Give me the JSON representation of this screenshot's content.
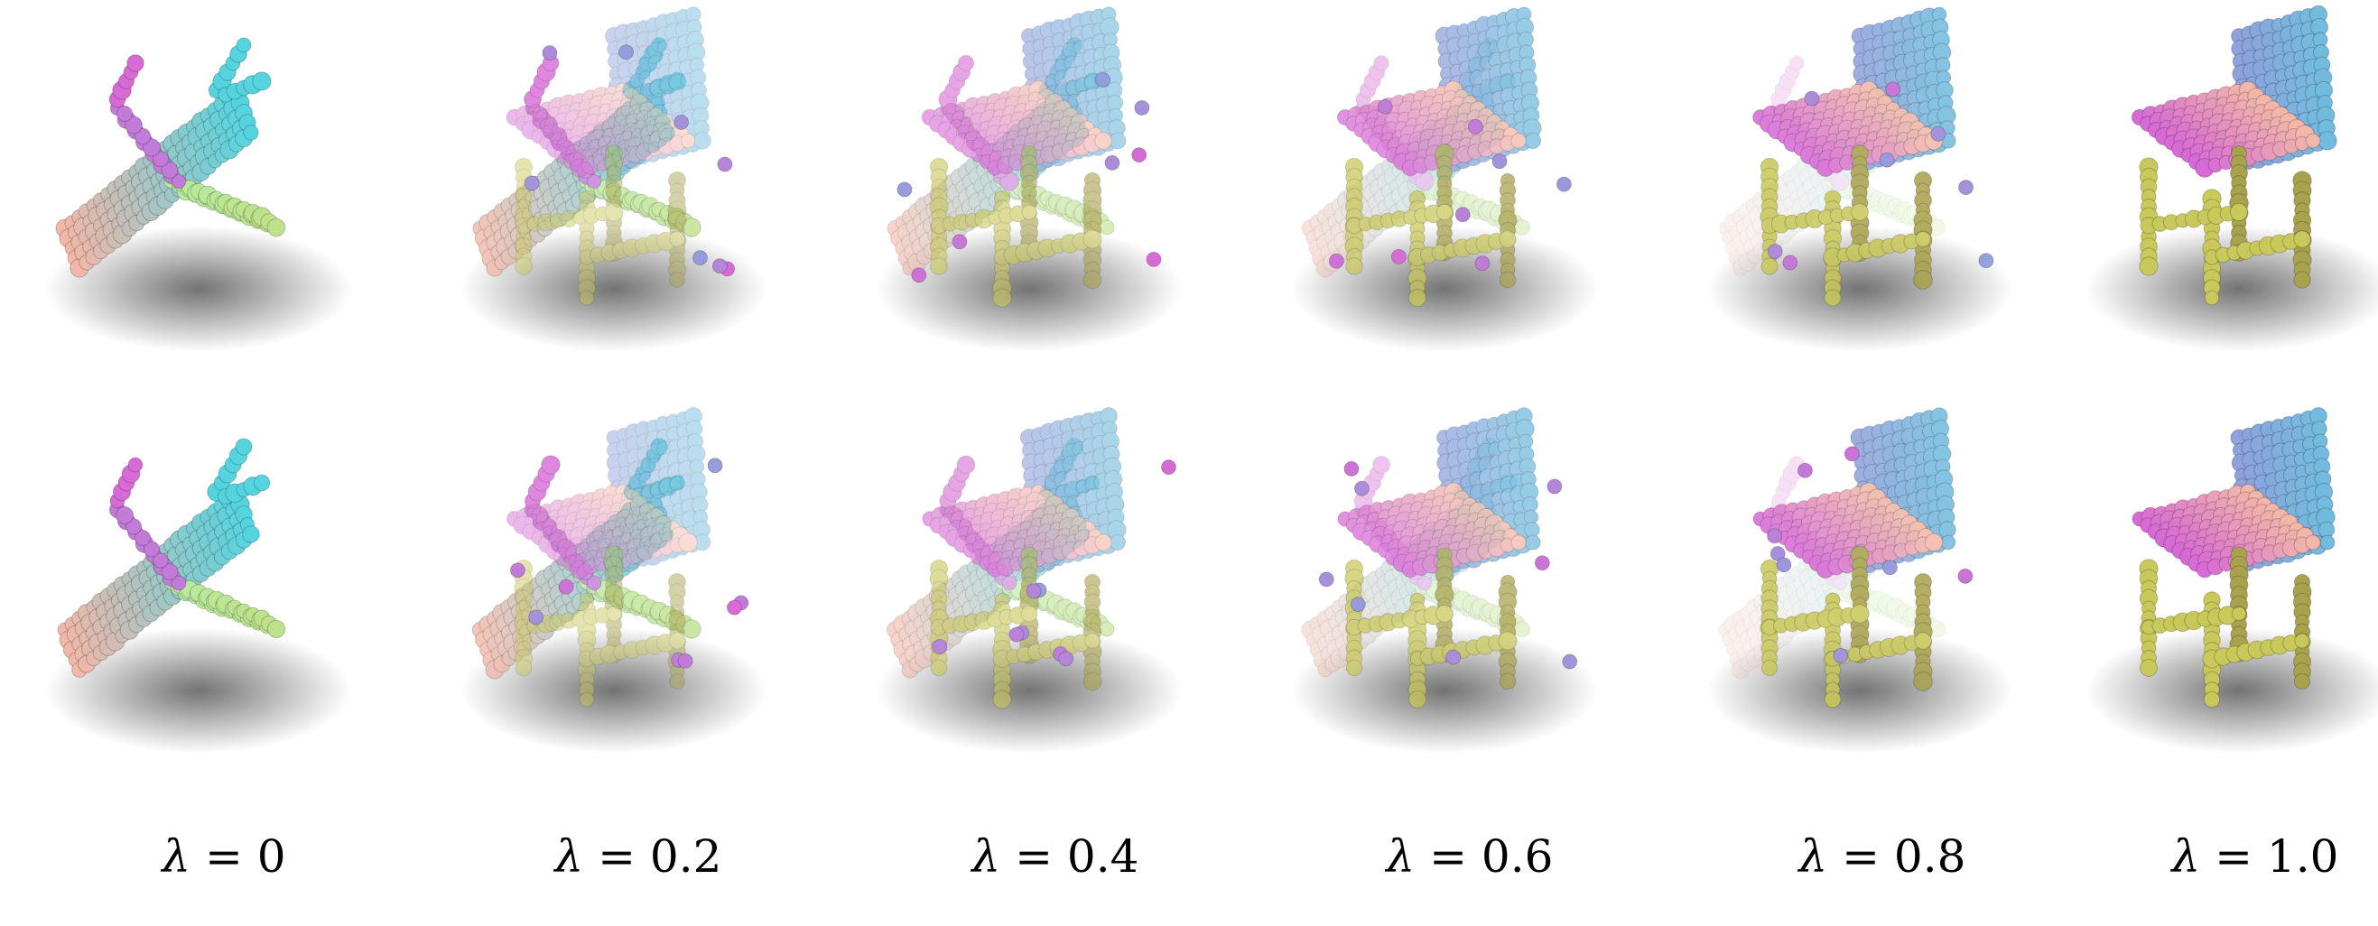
{
  "figure": {
    "rows": [
      {
        "name": "row-1",
        "shapes": [
          "airplane",
          "airplane-chair-mix",
          "airplane-chair-mix",
          "chair-airplane-mix",
          "chair-airplane-mix",
          "chair"
        ]
      },
      {
        "name": "row-2",
        "shapes": [
          "airplane",
          "airplane-chair-mix",
          "airplane-chair-mix",
          "chair-airplane-mix",
          "chair-airplane-mix",
          "chair"
        ]
      }
    ],
    "lambda_values": [
      0,
      0.2,
      0.4,
      0.6,
      0.8,
      1.0
    ],
    "captions": [
      {
        "symbol": "λ",
        "eq": " = ",
        "value": "0"
      },
      {
        "symbol": "λ",
        "eq": " = ",
        "value": "0.2"
      },
      {
        "symbol": "λ",
        "eq": " = ",
        "value": "0.4"
      },
      {
        "symbol": "λ",
        "eq": " = ",
        "value": "0.6"
      },
      {
        "symbol": "λ",
        "eq": " = ",
        "value": "0.8"
      },
      {
        "symbol": "λ",
        "eq": " = ",
        "value": "1.0"
      }
    ],
    "colors": {
      "nose": "#f2b7a8",
      "tail": "#d86ad6",
      "wing_tip": "#55d4e0",
      "back": "#8fa2dc",
      "legs": "#c9c85a",
      "wing": "#b9eca0",
      "shadow": "#000000"
    }
  }
}
